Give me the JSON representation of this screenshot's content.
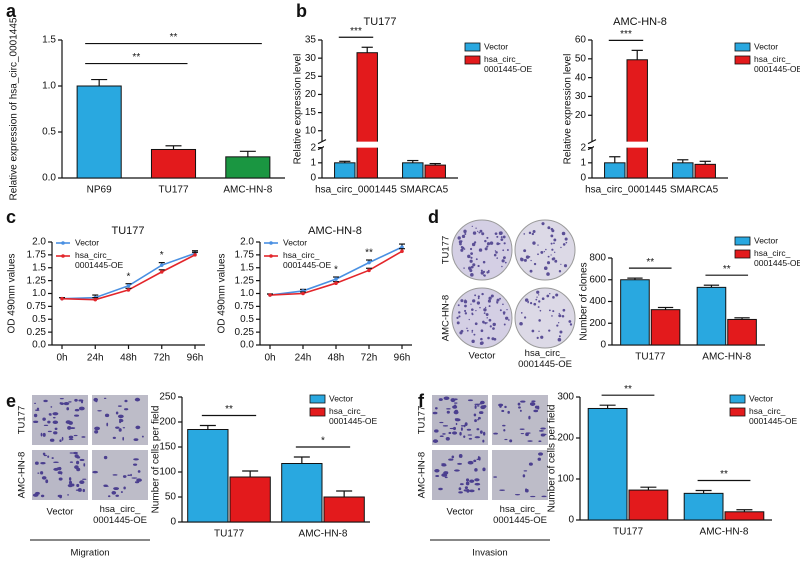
{
  "panel_labels": [
    "a",
    "b",
    "c",
    "d",
    "e",
    "f"
  ],
  "chart_data": [
    {
      "type": "bar",
      "ylabel": "Relative expression of hsa_circ_0001445",
      "categories": [
        "NP69",
        "TU177",
        "AMC-HN-8"
      ],
      "values": [
        1.0,
        0.31,
        0.23
      ],
      "errors": [
        0.07,
        0.04,
        0.06
      ],
      "colors": [
        "#29a8e0",
        "#e31a1c",
        "#1a9641"
      ],
      "ylim": [
        0,
        1.5
      ],
      "yticks": [
        {
          "value": 0,
          "label": "0.0"
        },
        0.5,
        {
          "value": 1,
          "label": "1.0"
        },
        1.5
      ],
      "significance": [
        "**",
        "**"
      ]
    },
    {
      "type": "bar",
      "title": "TU177",
      "ylabel": "Relative expression level",
      "categories": [
        "hsa_circ_0001445",
        "SMARCA5"
      ],
      "series": [
        {
          "name": "Vector",
          "color": "#29a8e0",
          "values": [
            1.0,
            1.0
          ],
          "errors": [
            0.1,
            0.15
          ]
        },
        {
          "name": "hsa_circ_\n0001445-OE",
          "color": "#e31a1c",
          "values": [
            31.5,
            0.85
          ],
          "errors": [
            1.5,
            0.1
          ]
        }
      ],
      "ylim": [
        0,
        35
      ],
      "ybreak": [
        2,
        7
      ],
      "yticks": [
        0,
        1,
        2,
        10,
        15,
        20,
        25,
        30,
        35
      ],
      "significance": [
        "***"
      ]
    },
    {
      "type": "bar",
      "title": "AMC-HN-8",
      "ylabel": "Relative expression level",
      "categories": [
        "hsa_circ_0001445",
        "SMARCA5"
      ],
      "series": [
        {
          "name": "Vector",
          "color": "#29a8e0",
          "values": [
            1.0,
            1.0
          ],
          "errors": [
            0.4,
            0.2
          ]
        },
        {
          "name": "hsa_circ_\n0001445-OE",
          "color": "#e31a1c",
          "values": [
            49.5,
            0.9
          ],
          "errors": [
            5,
            0.2
          ]
        }
      ],
      "ylim": [
        0,
        60
      ],
      "ybreak": [
        2,
        6
      ],
      "yticks": [
        0,
        1,
        2,
        20,
        30,
        40,
        50,
        60
      ],
      "significance": [
        "***"
      ]
    },
    {
      "type": "line",
      "title": "TU177",
      "ylabel": "OD 490nm values",
      "categories": [
        "0h",
        "24h",
        "48h",
        "72h",
        "96h"
      ],
      "series": [
        {
          "name": "Vector",
          "color": "#4a90e2",
          "values": [
            0.9,
            0.92,
            1.15,
            1.55,
            1.78
          ],
          "errors": [
            0.02,
            0.05,
            0.04,
            0.05,
            0.05
          ]
        },
        {
          "name": "hsa_circ_\n0001445-OE",
          "color": "#e3262b",
          "values": [
            0.9,
            0.88,
            1.07,
            1.42,
            1.75
          ],
          "errors": [
            0.02,
            0.04,
            0.03,
            0.04,
            0.05
          ]
        }
      ],
      "ylim": [
        0,
        2
      ],
      "yticks": [
        {
          "value": 0,
          "label": "0.0"
        },
        0.25,
        0.5,
        0.75,
        {
          "value": 1,
          "label": "1.0"
        },
        1.25,
        1.5,
        1.75,
        {
          "value": 2,
          "label": "2.0"
        }
      ],
      "significance": [
        null,
        null,
        "*",
        "*",
        null
      ]
    },
    {
      "type": "line",
      "title": "AMC-HN-8",
      "ylabel": "OD 490nm values",
      "categories": [
        "0h",
        "24h",
        "48h",
        "72h",
        "96h"
      ],
      "series": [
        {
          "name": "Vector",
          "color": "#4a90e2",
          "values": [
            0.97,
            1.05,
            1.28,
            1.6,
            1.9
          ],
          "errors": [
            0.02,
            0.03,
            0.04,
            0.05,
            0.06
          ]
        },
        {
          "name": "hsa_circ_\n0001445-OE",
          "color": "#e3262b",
          "values": [
            0.97,
            1.0,
            1.2,
            1.45,
            1.82
          ],
          "errors": [
            0.02,
            0.03,
            0.03,
            0.04,
            0.05
          ]
        }
      ],
      "ylim": [
        0,
        2
      ],
      "yticks": [
        {
          "value": 0,
          "label": "0.0"
        },
        0.25,
        0.5,
        0.75,
        {
          "value": 1,
          "label": "1.0"
        },
        1.25,
        1.5,
        1.75,
        {
          "value": 2,
          "label": "2.0"
        }
      ],
      "significance": [
        null,
        null,
        "*",
        "**",
        null
      ]
    },
    {
      "type": "bar",
      "ylabel": "Number of clones",
      "categories": [
        "TU177",
        "AMC-HN-8"
      ],
      "series": [
        {
          "name": "Vector",
          "color": "#29a8e0",
          "values": [
            600,
            530
          ],
          "errors": [
            15,
            20
          ]
        },
        {
          "name": "hsa_circ_\n0001445-OE",
          "color": "#e31a1c",
          "values": [
            325,
            235
          ],
          "errors": [
            20,
            15
          ]
        }
      ],
      "ylim": [
        0,
        800
      ],
      "yticks": [
        0,
        200,
        400,
        600,
        800
      ],
      "significance": [
        "**",
        "**"
      ]
    },
    {
      "type": "bar",
      "ylabel": "Number of cells per field",
      "categories": [
        "TU177",
        "AMC-HN-8"
      ],
      "series": [
        {
          "name": "Vector",
          "color": "#29a8e0",
          "values": [
            185,
            117
          ],
          "errors": [
            8,
            13
          ]
        },
        {
          "name": "hsa_circ_\n0001445-OE",
          "color": "#e31a1c",
          "values": [
            90,
            50
          ],
          "errors": [
            12,
            12
          ]
        }
      ],
      "ylim": [
        0,
        250
      ],
      "yticks": [
        0,
        50,
        100,
        150,
        200,
        250
      ],
      "significance": [
        "**",
        "*"
      ]
    },
    {
      "type": "bar",
      "ylabel": "Number of cells per field",
      "categories": [
        "TU177",
        "AMC-HN-8"
      ],
      "series": [
        {
          "name": "Vector",
          "color": "#29a8e0",
          "values": [
            272,
            65
          ],
          "errors": [
            8,
            7
          ]
        },
        {
          "name": "hsa_circ_\n0001445-OE",
          "color": "#e31a1c",
          "values": [
            73,
            20
          ],
          "errors": [
            7,
            5
          ]
        }
      ],
      "ylim": [
        0,
        300
      ],
      "yticks": [
        0,
        100,
        200,
        300
      ],
      "significance": [
        "**",
        "**"
      ]
    }
  ],
  "image_panels": [
    {
      "row_labels": [
        "TU177",
        "AMC-HN-8"
      ],
      "col_labels": [
        "Vector",
        "hsa_circ_\n0001445-OE"
      ]
    },
    {
      "row_labels": [
        "TU177",
        "AMC-HN-8"
      ],
      "col_labels": [
        "Vector",
        "hsa_circ_\n0001445-OE"
      ],
      "caption": "Migration"
    },
    {
      "row_labels": [
        "TU177",
        "AMC-HN-8"
      ],
      "col_labels": [
        "Vector",
        "hsa_circ_\n0001445-OE"
      ],
      "caption": "Invasion"
    }
  ]
}
